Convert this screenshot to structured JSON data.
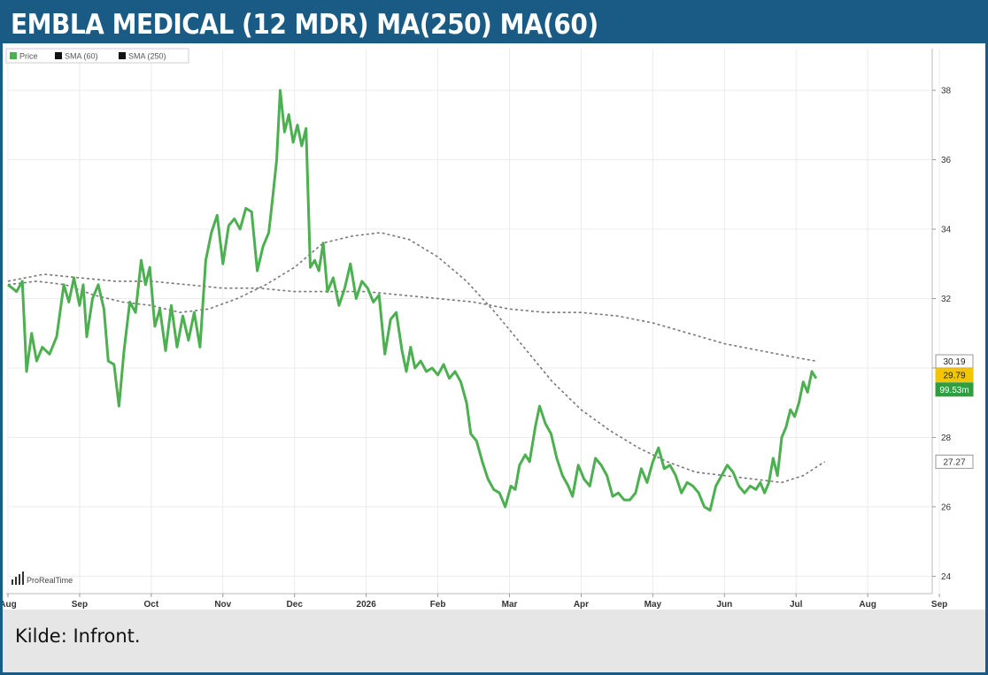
{
  "title": "EMBLA MEDICAL (12 MDR) MA(250) MA(60)",
  "source": "Kilde: Infront.",
  "brand": "ProRealTime",
  "colors": {
    "frame": "#1a5b86",
    "price": "#4caf50",
    "sma": "#777777",
    "badge_yellow": "#f2c500",
    "badge_green": "#2e9e3e"
  },
  "chart_data": {
    "type": "line",
    "legend": [
      {
        "label": "Price",
        "color": "#4caf50"
      },
      {
        "label": "SMA (60)",
        "color": "#111111"
      },
      {
        "label": "SMA (250)",
        "color": "#111111"
      }
    ],
    "x_tick_labels": [
      "Aug",
      "Sep",
      "Oct",
      "Nov",
      "Dec",
      "2026",
      "Feb",
      "Mar",
      "Apr",
      "May",
      "Jun",
      "Jul",
      "Aug",
      "Sep"
    ],
    "xlim": [
      0,
      12.9
    ],
    "ylim": [
      23.5,
      39.2
    ],
    "y_ticks": [
      24,
      26,
      28,
      30,
      32,
      34,
      36,
      38
    ],
    "y_position": "right",
    "grid": true,
    "badges": [
      {
        "text": "30.19",
        "value": 30.19,
        "style": "white"
      },
      {
        "text": "29.79",
        "value": 29.79,
        "style": "yellow"
      },
      {
        "text": "99.53m",
        "value": 29.38,
        "style": "green"
      }
    ],
    "series": [
      {
        "name": "Price",
        "points": [
          [
            0.0,
            32.4
          ],
          [
            0.12,
            32.2
          ],
          [
            0.2,
            32.5
          ],
          [
            0.26,
            29.9
          ],
          [
            0.33,
            31.0
          ],
          [
            0.4,
            30.2
          ],
          [
            0.48,
            30.6
          ],
          [
            0.58,
            30.4
          ],
          [
            0.68,
            30.9
          ],
          [
            0.78,
            32.4
          ],
          [
            0.85,
            31.9
          ],
          [
            0.92,
            32.6
          ],
          [
            1.0,
            31.8
          ],
          [
            1.05,
            32.4
          ],
          [
            1.1,
            30.9
          ],
          [
            1.18,
            32.0
          ],
          [
            1.26,
            32.4
          ],
          [
            1.34,
            31.7
          ],
          [
            1.4,
            30.2
          ],
          [
            1.48,
            30.1
          ],
          [
            1.55,
            28.9
          ],
          [
            1.62,
            30.5
          ],
          [
            1.7,
            31.9
          ],
          [
            1.78,
            31.6
          ],
          [
            1.86,
            33.1
          ],
          [
            1.92,
            32.4
          ],
          [
            1.98,
            32.9
          ],
          [
            2.05,
            31.2
          ],
          [
            2.12,
            31.7
          ],
          [
            2.2,
            30.5
          ],
          [
            2.28,
            31.8
          ],
          [
            2.36,
            30.6
          ],
          [
            2.44,
            31.5
          ],
          [
            2.52,
            30.8
          ],
          [
            2.6,
            31.6
          ],
          [
            2.68,
            30.6
          ],
          [
            2.76,
            33.1
          ],
          [
            2.84,
            33.9
          ],
          [
            2.92,
            34.4
          ],
          [
            3.0,
            33.0
          ],
          [
            3.08,
            34.1
          ],
          [
            3.16,
            34.3
          ],
          [
            3.24,
            34.0
          ],
          [
            3.32,
            34.6
          ],
          [
            3.4,
            34.5
          ],
          [
            3.48,
            32.8
          ],
          [
            3.56,
            33.5
          ],
          [
            3.64,
            33.9
          ],
          [
            3.7,
            35.0
          ],
          [
            3.75,
            36.0
          ],
          [
            3.8,
            38.0
          ],
          [
            3.86,
            36.8
          ],
          [
            3.92,
            37.3
          ],
          [
            3.98,
            36.5
          ],
          [
            4.04,
            37.0
          ],
          [
            4.1,
            36.4
          ],
          [
            4.16,
            36.9
          ],
          [
            4.22,
            32.9
          ],
          [
            4.28,
            33.1
          ],
          [
            4.34,
            32.8
          ],
          [
            4.4,
            33.6
          ],
          [
            4.46,
            32.2
          ],
          [
            4.54,
            32.6
          ],
          [
            4.62,
            31.8
          ],
          [
            4.7,
            32.3
          ],
          [
            4.78,
            33.0
          ],
          [
            4.86,
            32.0
          ],
          [
            4.94,
            32.5
          ],
          [
            5.02,
            32.3
          ],
          [
            5.1,
            31.9
          ],
          [
            5.18,
            32.1
          ],
          [
            5.26,
            30.4
          ],
          [
            5.34,
            31.4
          ],
          [
            5.42,
            31.6
          ],
          [
            5.5,
            30.5
          ],
          [
            5.56,
            29.9
          ],
          [
            5.62,
            30.6
          ],
          [
            5.68,
            30.0
          ],
          [
            5.76,
            30.2
          ],
          [
            5.84,
            29.9
          ],
          [
            5.92,
            30.0
          ],
          [
            6.0,
            29.8
          ],
          [
            6.08,
            30.1
          ],
          [
            6.16,
            29.7
          ],
          [
            6.24,
            29.9
          ],
          [
            6.32,
            29.6
          ],
          [
            6.4,
            29.0
          ],
          [
            6.46,
            28.1
          ],
          [
            6.54,
            27.9
          ],
          [
            6.62,
            27.3
          ],
          [
            6.7,
            26.8
          ],
          [
            6.78,
            26.5
          ],
          [
            6.86,
            26.4
          ],
          [
            6.94,
            26.0
          ],
          [
            7.02,
            26.6
          ],
          [
            7.08,
            26.5
          ],
          [
            7.14,
            27.2
          ],
          [
            7.22,
            27.5
          ],
          [
            7.28,
            27.3
          ],
          [
            7.36,
            28.3
          ],
          [
            7.42,
            28.9
          ],
          [
            7.5,
            28.4
          ],
          [
            7.58,
            28.1
          ],
          [
            7.66,
            27.4
          ],
          [
            7.74,
            26.9
          ],
          [
            7.82,
            26.6
          ],
          [
            7.88,
            26.3
          ],
          [
            7.96,
            27.2
          ],
          [
            8.04,
            26.8
          ],
          [
            8.12,
            26.6
          ],
          [
            8.2,
            27.4
          ],
          [
            8.28,
            27.2
          ],
          [
            8.36,
            26.9
          ],
          [
            8.44,
            26.3
          ],
          [
            8.52,
            26.4
          ],
          [
            8.6,
            26.2
          ],
          [
            8.68,
            26.2
          ],
          [
            8.76,
            26.4
          ],
          [
            8.84,
            27.1
          ],
          [
            8.92,
            26.7
          ],
          [
            9.0,
            27.3
          ],
          [
            9.08,
            27.7
          ],
          [
            9.16,
            27.1
          ],
          [
            9.24,
            27.2
          ],
          [
            9.32,
            26.9
          ],
          [
            9.4,
            26.4
          ],
          [
            9.48,
            26.7
          ],
          [
            9.56,
            26.6
          ],
          [
            9.64,
            26.4
          ],
          [
            9.72,
            26.0
          ],
          [
            9.8,
            25.9
          ],
          [
            9.88,
            26.6
          ],
          [
            9.96,
            26.9
          ],
          [
            10.04,
            27.2
          ],
          [
            10.12,
            27.0
          ],
          [
            10.2,
            26.6
          ],
          [
            10.28,
            26.4
          ],
          [
            10.36,
            26.6
          ],
          [
            10.44,
            26.5
          ],
          [
            10.5,
            26.7
          ],
          [
            10.56,
            26.4
          ],
          [
            10.62,
            26.7
          ],
          [
            10.68,
            27.4
          ],
          [
            10.74,
            26.9
          ],
          [
            10.8,
            28.0
          ],
          [
            10.86,
            28.3
          ],
          [
            10.92,
            28.8
          ],
          [
            10.98,
            28.6
          ],
          [
            11.04,
            29.0
          ],
          [
            11.1,
            29.6
          ],
          [
            11.16,
            29.3
          ],
          [
            11.22,
            29.9
          ],
          [
            11.28,
            29.7
          ]
        ]
      },
      {
        "name": "SMA (60)",
        "points": [
          [
            0.0,
            32.4
          ],
          [
            0.4,
            32.5
          ],
          [
            0.8,
            32.4
          ],
          [
            1.2,
            32.1
          ],
          [
            1.6,
            31.9
          ],
          [
            2.0,
            31.8
          ],
          [
            2.4,
            31.6
          ],
          [
            2.8,
            31.7
          ],
          [
            3.2,
            32.0
          ],
          [
            3.6,
            32.4
          ],
          [
            4.0,
            32.9
          ],
          [
            4.4,
            33.6
          ],
          [
            4.8,
            33.8
          ],
          [
            5.2,
            33.9
          ],
          [
            5.6,
            33.7
          ],
          [
            6.0,
            33.2
          ],
          [
            6.4,
            32.5
          ],
          [
            6.8,
            31.6
          ],
          [
            7.2,
            30.6
          ],
          [
            7.6,
            29.6
          ],
          [
            8.0,
            28.8
          ],
          [
            8.4,
            28.2
          ],
          [
            8.8,
            27.7
          ],
          [
            9.2,
            27.3
          ],
          [
            9.6,
            27.0
          ],
          [
            10.0,
            26.9
          ],
          [
            10.4,
            26.8
          ],
          [
            10.8,
            26.7
          ],
          [
            11.1,
            26.9
          ],
          [
            11.4,
            27.3
          ]
        ]
      },
      {
        "name": "SMA (250)",
        "points": [
          [
            0.0,
            32.5
          ],
          [
            0.5,
            32.7
          ],
          [
            1.0,
            32.6
          ],
          [
            1.5,
            32.5
          ],
          [
            2.0,
            32.5
          ],
          [
            2.5,
            32.4
          ],
          [
            3.0,
            32.3
          ],
          [
            3.5,
            32.3
          ],
          [
            4.0,
            32.2
          ],
          [
            4.5,
            32.2
          ],
          [
            5.0,
            32.2
          ],
          [
            5.5,
            32.1
          ],
          [
            6.0,
            32.0
          ],
          [
            6.5,
            31.9
          ],
          [
            7.0,
            31.7
          ],
          [
            7.5,
            31.6
          ],
          [
            8.0,
            31.6
          ],
          [
            8.5,
            31.5
          ],
          [
            9.0,
            31.3
          ],
          [
            9.5,
            31.0
          ],
          [
            10.0,
            30.7
          ],
          [
            10.5,
            30.5
          ],
          [
            11.0,
            30.3
          ],
          [
            11.3,
            30.19
          ]
        ]
      }
    ]
  }
}
